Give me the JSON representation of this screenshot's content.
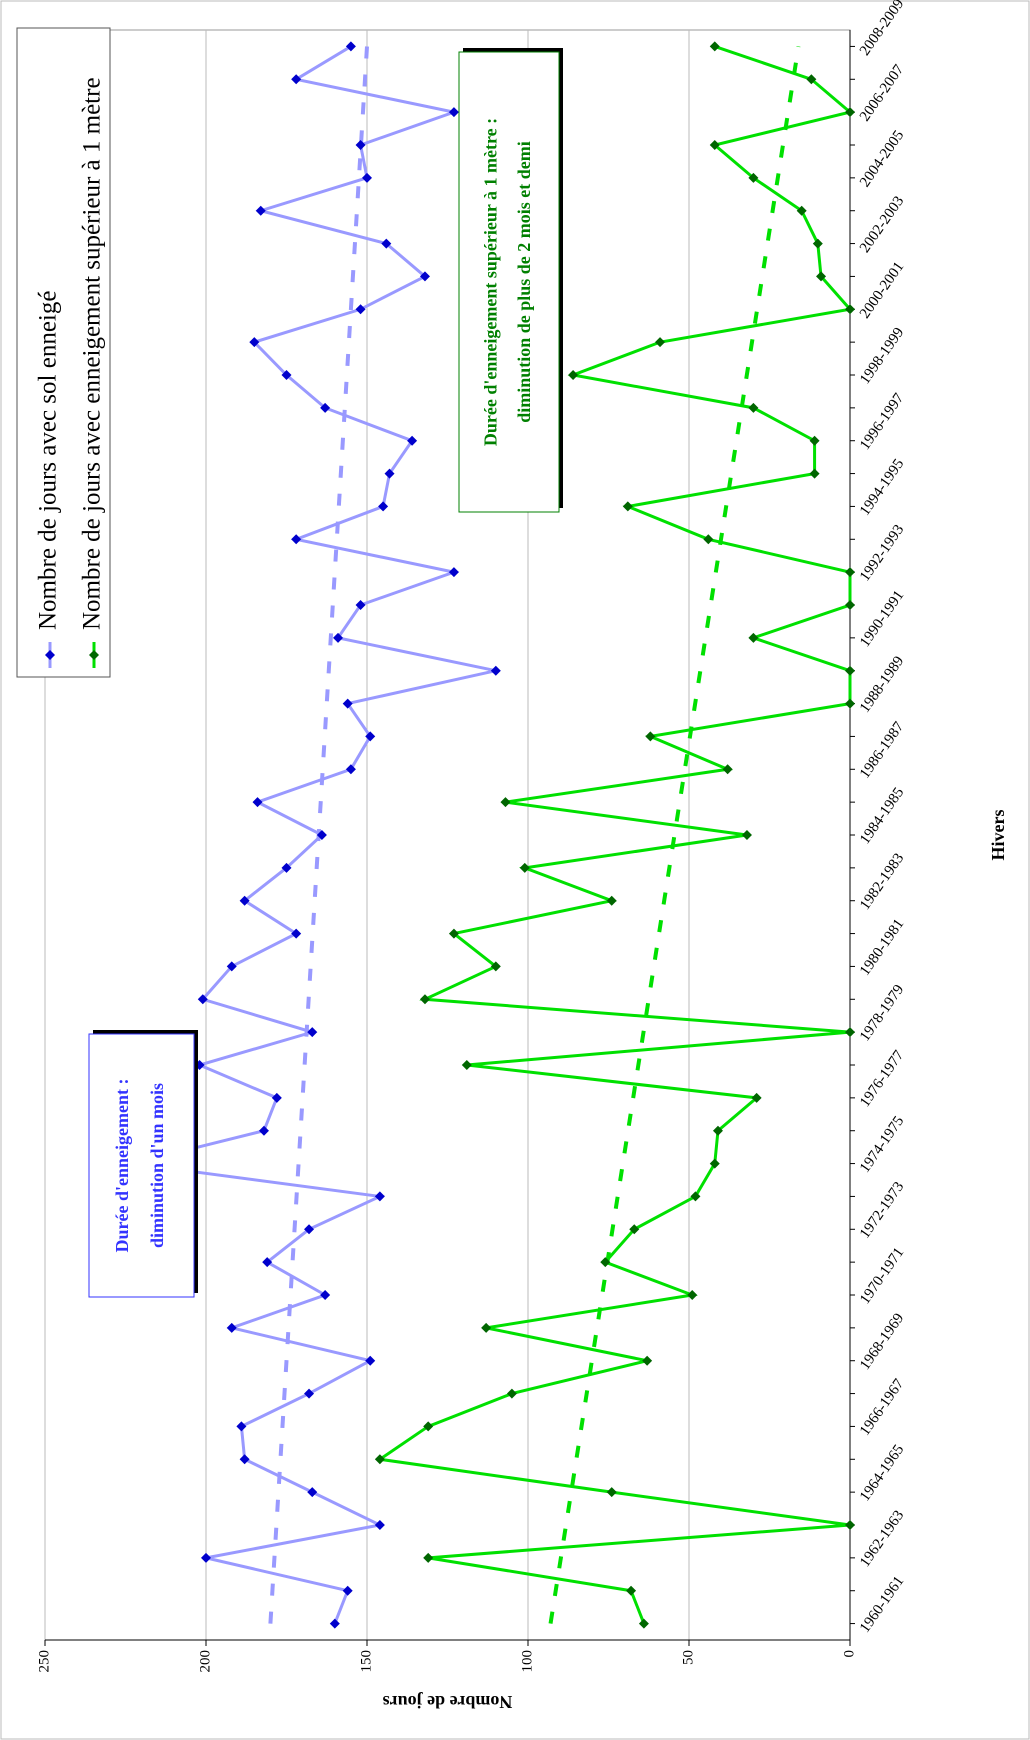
{
  "chart_data": {
    "type": "line",
    "x_label": "Hivers",
    "y_label": "Nombre de jours",
    "categories": [
      "1960-1961",
      null,
      "1962-1963",
      null,
      "1964-1965",
      null,
      "1966-1967",
      null,
      "1968-1969",
      null,
      "1970-1971",
      null,
      "1972-1973",
      null,
      "1974-1975",
      null,
      "1976-1977",
      null,
      "1978-1979",
      null,
      "1980-1981",
      null,
      "1982-1983",
      null,
      "1984-1985",
      null,
      "1986-1987",
      null,
      "1988-1989",
      null,
      "1990-1991",
      null,
      "1992-1993",
      null,
      "1994-1995",
      null,
      "1996-1997",
      null,
      "1998-1999",
      null,
      "2000-2001",
      null,
      "2002-2003",
      null,
      "2004-2005",
      null,
      "2006-2007",
      null,
      "2008-2009"
    ],
    "series": [
      {
        "name": "Nombre de jours avec sol enneigé",
        "color": "#9999ff",
        "marker_color": "#0000cc",
        "values": [
          160,
          156,
          200,
          146,
          167,
          188,
          189,
          168,
          149,
          192,
          163,
          181,
          168,
          146,
          223,
          182,
          178,
          202,
          167,
          201,
          192,
          172,
          188,
          175,
          164,
          184,
          155,
          149,
          156,
          110,
          159,
          152,
          123,
          172,
          145,
          143,
          136,
          163,
          175,
          185,
          152,
          132,
          144,
          183,
          150,
          152,
          123,
          172,
          155
        ],
        "trend": [
          180,
          150
        ]
      },
      {
        "name": "Nombre de jours avec enneigement supérieur à 1 mètre",
        "color": "#00e000",
        "marker_color": "#006600",
        "values": [
          64,
          68,
          131,
          0,
          74,
          146,
          131,
          105,
          63,
          113,
          49,
          76,
          67,
          48,
          42,
          41,
          29,
          119,
          0,
          132,
          110,
          123,
          74,
          101,
          32,
          107,
          38,
          62,
          0,
          0,
          30,
          0,
          0,
          44,
          69,
          11,
          11,
          30,
          86,
          59,
          0,
          9,
          10,
          15,
          30,
          42,
          0,
          12,
          42
        ],
        "trend": [
          93,
          16
        ]
      }
    ],
    "ylim": [
      0,
      250
    ],
    "yticks": [
      0,
      50,
      100,
      150,
      200,
      250
    ],
    "grid": true,
    "legend": "top-right",
    "annotations": [
      {
        "lines": [
          "Durée d'enneigement :",
          "diminution d'un mois"
        ],
        "color": "#3333ff"
      },
      {
        "lines": [
          "Durée d'enneigement supérieur à 1 mètre :",
          "diminution de plus de 2 mois et demi"
        ],
        "color": "#008000"
      }
    ]
  }
}
